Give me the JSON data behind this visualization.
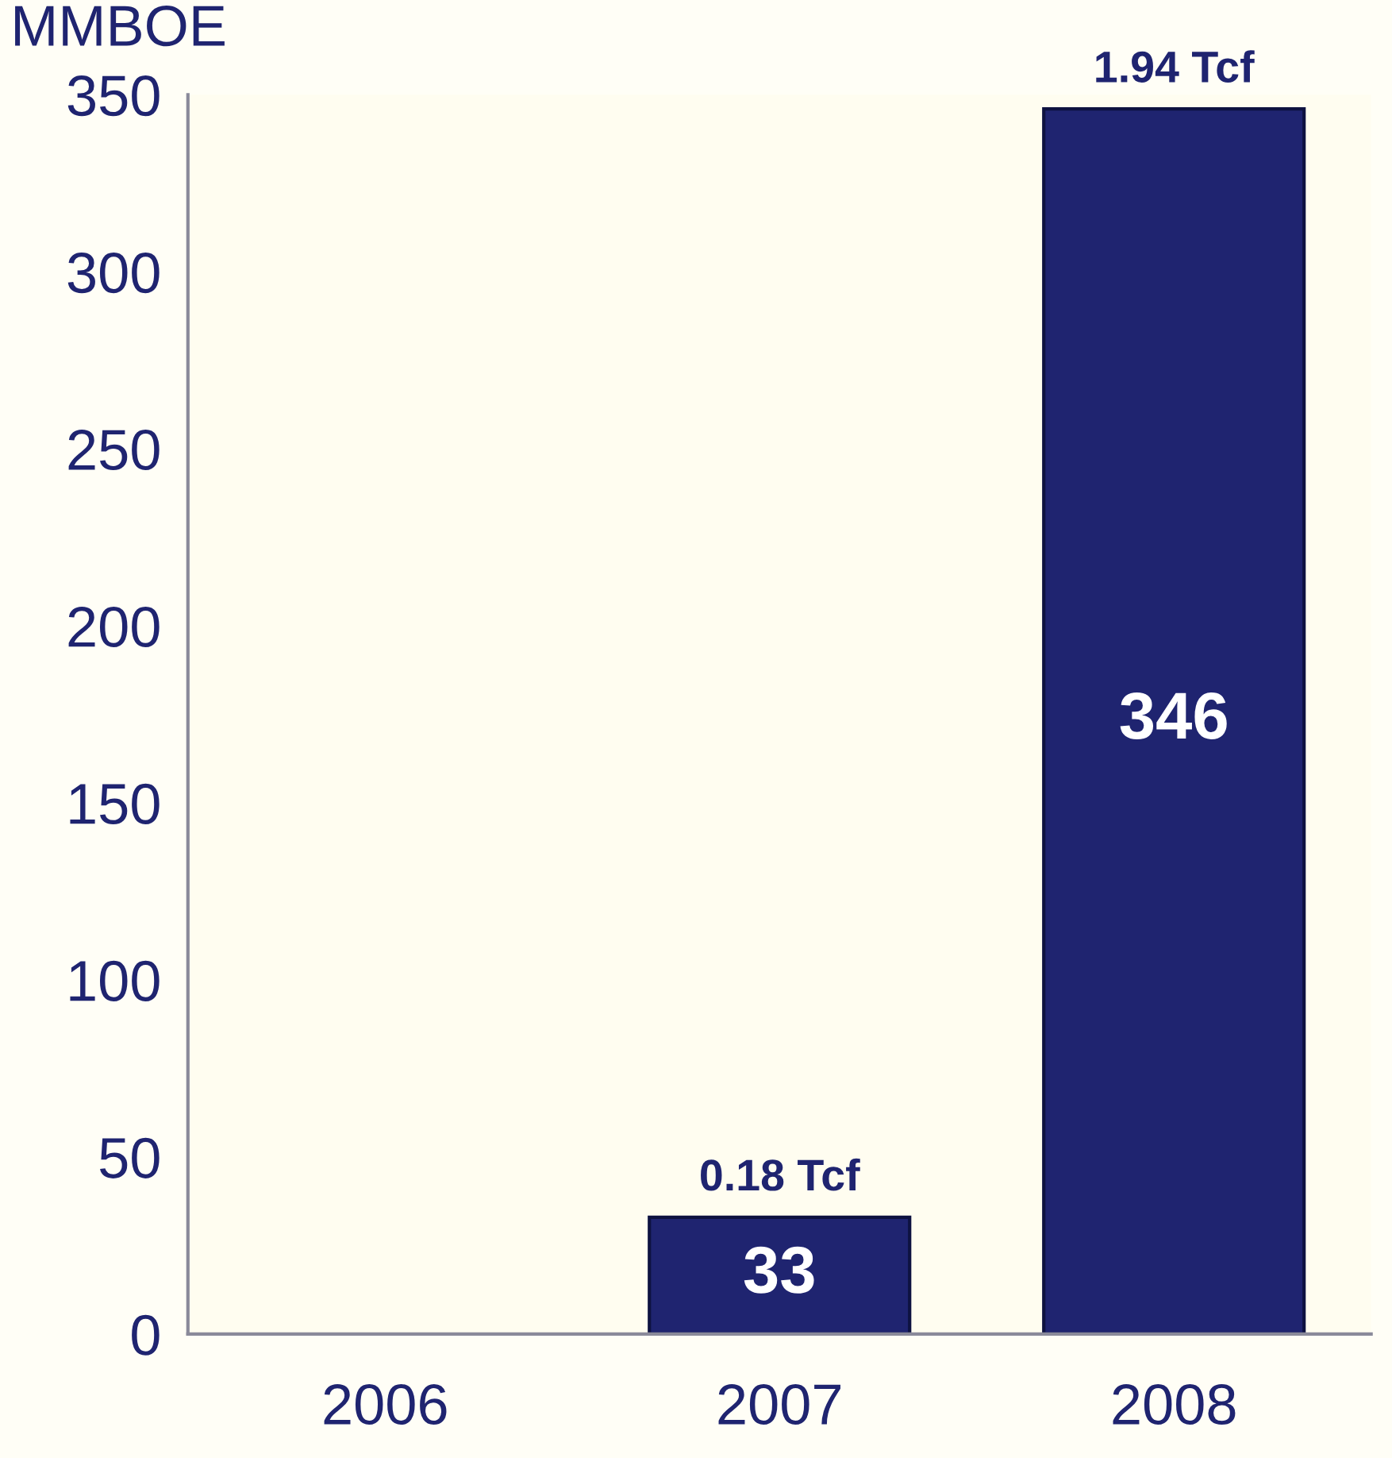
{
  "chart_data": {
    "type": "bar",
    "ylabel": "MMBOE",
    "categories": [
      "2006",
      "2007",
      "2008"
    ],
    "values": [
      null,
      33,
      346
    ],
    "color": "#1f2470",
    "data_labels": true,
    "ylim": [
      0,
      350
    ],
    "yticks": [
      0,
      50,
      100,
      150,
      200,
      250,
      300,
      350
    ],
    "grid": false,
    "annotations": [
      {
        "text": "0.18 Tcf",
        "x": "2007",
        "y": 33
      },
      {
        "text": "1.94 Tcf",
        "x": "2008",
        "y": 346
      }
    ]
  }
}
